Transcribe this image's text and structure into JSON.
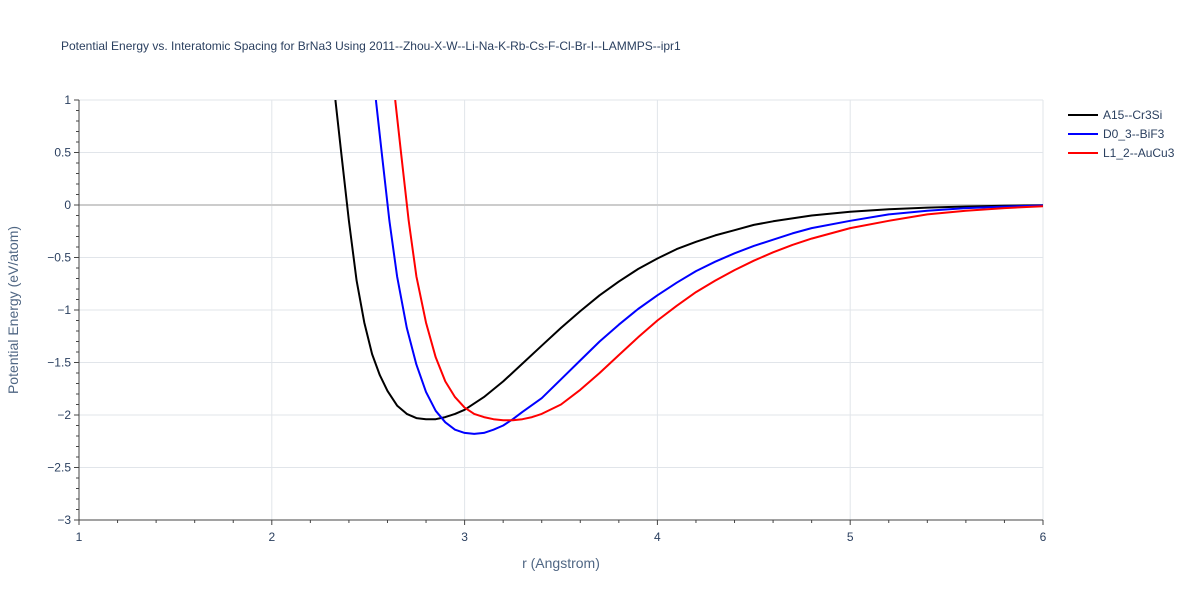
{
  "chart_data": {
    "type": "line",
    "title": "Potential Energy vs. Interatomic Spacing for BrNa3 Using 2011--Zhou-X-W--Li-Na-K-Rb-Cs-F-Cl-Br-I--LAMMPS--ipr1",
    "xlabel": "r (Angstrom)",
    "ylabel": "Potential Energy (eV/atom)",
    "xlim": [
      1,
      6
    ],
    "ylim": [
      -3,
      1
    ],
    "x_ticks": [
      1,
      2,
      3,
      4,
      5,
      6
    ],
    "y_ticks": [
      1,
      0.5,
      0,
      -0.5,
      -1,
      -1.5,
      -2,
      -2.5,
      -3
    ],
    "x_tick_labels": [
      "1",
      "2",
      "3",
      "4",
      "5",
      "6"
    ],
    "y_tick_labels": [
      "1",
      "0.5",
      "0",
      "−0.5",
      "−1",
      "−1.5",
      "−2",
      "−2.5",
      "−3"
    ],
    "grid": true,
    "legend_position": "top-right",
    "series": [
      {
        "name": "A15--Cr3Si",
        "color": "#000000",
        "x": [
          2.33,
          2.36,
          2.4,
          2.44,
          2.48,
          2.52,
          2.56,
          2.6,
          2.65,
          2.7,
          2.75,
          2.8,
          2.85,
          2.9,
          2.95,
          3.0,
          3.1,
          3.2,
          3.3,
          3.4,
          3.5,
          3.6,
          3.7,
          3.8,
          3.9,
          4.0,
          4.1,
          4.2,
          4.3,
          4.4,
          4.5,
          4.6,
          4.8,
          5.0,
          5.2,
          5.4,
          5.6,
          5.8,
          6.0
        ],
        "y": [
          1.0,
          0.5,
          -0.15,
          -0.72,
          -1.12,
          -1.42,
          -1.62,
          -1.77,
          -1.91,
          -1.99,
          -2.03,
          -2.04,
          -2.04,
          -2.02,
          -1.99,
          -1.95,
          -1.83,
          -1.68,
          -1.51,
          -1.34,
          -1.17,
          -1.01,
          -0.86,
          -0.73,
          -0.61,
          -0.51,
          -0.42,
          -0.35,
          -0.29,
          -0.24,
          -0.19,
          -0.155,
          -0.1,
          -0.065,
          -0.04,
          -0.025,
          -0.014,
          -0.007,
          -0.003
        ]
      },
      {
        "name": "D0_3--BiF3",
        "color": "#0000ff",
        "x": [
          2.54,
          2.57,
          2.61,
          2.65,
          2.7,
          2.75,
          2.8,
          2.85,
          2.9,
          2.95,
          3.0,
          3.05,
          3.1,
          3.15,
          3.2,
          3.25,
          3.3,
          3.4,
          3.5,
          3.6,
          3.7,
          3.8,
          3.9,
          4.0,
          4.1,
          4.2,
          4.3,
          4.4,
          4.5,
          4.6,
          4.7,
          4.8,
          5.0,
          5.2,
          5.4,
          5.6,
          5.8,
          6.0
        ],
        "y": [
          1.0,
          0.5,
          -0.15,
          -0.68,
          -1.17,
          -1.52,
          -1.78,
          -1.96,
          -2.07,
          -2.14,
          -2.17,
          -2.18,
          -2.17,
          -2.14,
          -2.1,
          -2.04,
          -1.97,
          -1.84,
          -1.66,
          -1.48,
          -1.3,
          -1.14,
          -0.99,
          -0.86,
          -0.74,
          -0.63,
          -0.54,
          -0.46,
          -0.39,
          -0.33,
          -0.27,
          -0.22,
          -0.15,
          -0.09,
          -0.055,
          -0.03,
          -0.015,
          -0.005
        ]
      },
      {
        "name": "L1_2--AuCu3",
        "color": "#ff0000",
        "x": [
          2.64,
          2.67,
          2.71,
          2.75,
          2.8,
          2.85,
          2.9,
          2.95,
          3.0,
          3.05,
          3.1,
          3.15,
          3.2,
          3.25,
          3.3,
          3.35,
          3.4,
          3.5,
          3.6,
          3.7,
          3.8,
          3.9,
          4.0,
          4.1,
          4.2,
          4.3,
          4.4,
          4.5,
          4.6,
          4.7,
          4.8,
          4.9,
          5.0,
          5.2,
          5.4,
          5.6,
          5.8,
          6.0
        ],
        "y": [
          1.0,
          0.5,
          -0.15,
          -0.68,
          -1.12,
          -1.45,
          -1.68,
          -1.83,
          -1.93,
          -1.99,
          -2.02,
          -2.04,
          -2.05,
          -2.05,
          -2.04,
          -2.02,
          -1.99,
          -1.9,
          -1.76,
          -1.6,
          -1.43,
          -1.26,
          -1.1,
          -0.96,
          -0.83,
          -0.72,
          -0.62,
          -0.53,
          -0.45,
          -0.38,
          -0.32,
          -0.27,
          -0.22,
          -0.15,
          -0.09,
          -0.055,
          -0.03,
          -0.012
        ]
      }
    ]
  }
}
